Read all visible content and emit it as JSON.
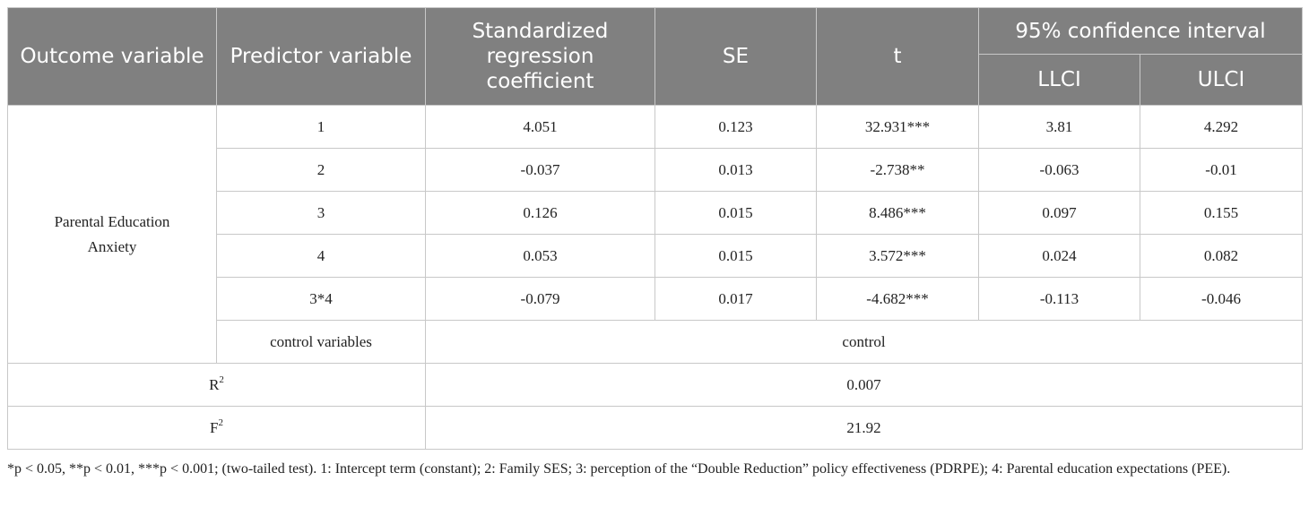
{
  "header": {
    "outcome": "Outcome variable",
    "predictor": "Predictor variable",
    "coef": "Standardized regression coefficient",
    "se": "SE",
    "t": "t",
    "ci": "95% confidence interval",
    "llci": "LLCI",
    "ulci": "ULCI"
  },
  "outcome_variable": "Parental Education Anxiety",
  "rows": [
    {
      "predictor": "1",
      "coef": "4.051",
      "se": "0.123",
      "t": "32.931***",
      "llci": "3.81",
      "ulci": "4.292"
    },
    {
      "predictor": "2",
      "coef": "-0.037",
      "se": "0.013",
      "t": "-2.738**",
      "llci": "-0.063",
      "ulci": "-0.01"
    },
    {
      "predictor": "3",
      "coef": "0.126",
      "se": "0.015",
      "t": "8.486***",
      "llci": "0.097",
      "ulci": "0.155"
    },
    {
      "predictor": "4",
      "coef": "0.053",
      "se": "0.015",
      "t": "3.572***",
      "llci": "0.024",
      "ulci": "0.082"
    },
    {
      "predictor": "3*4",
      "coef": "-0.079",
      "se": "0.017",
      "t": "-4.682***",
      "llci": "-0.113",
      "ulci": "-0.046"
    }
  ],
  "control": {
    "label": "control variables",
    "value": "control"
  },
  "r2": {
    "label": "R",
    "sup": "2",
    "value": "0.007"
  },
  "f2": {
    "label": "F",
    "sup": "2",
    "value": "21.92"
  },
  "footnote": "*p < 0.05, **p < 0.01, ***p < 0.001; (two-tailed test). 1: Intercept term (constant); 2: Family SES; 3: perception of the “Double Reduction” policy effectiveness (PDRPE); 4: Parental education expectations (PEE)."
}
